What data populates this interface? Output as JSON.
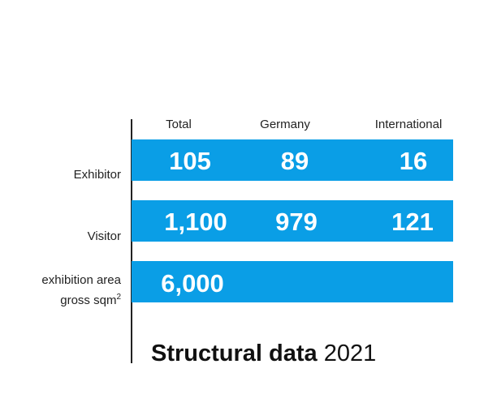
{
  "chart_data": {
    "type": "table",
    "title": "Structural data",
    "subtitle": "2021",
    "columns": [
      "Total",
      "Germany",
      "International"
    ],
    "rows": [
      {
        "label": "Exhibitor",
        "values": [
          "105",
          "89",
          "16"
        ]
      },
      {
        "label": "Visitor",
        "values": [
          "1,100",
          "979",
          "121"
        ]
      },
      {
        "label_line1": "exhibition area",
        "label_line2": "gross sqm",
        "label_sup": "2",
        "values": [
          "6,000",
          "",
          ""
        ]
      }
    ],
    "bar_color": "#0a9ee6",
    "value_color": "#ffffff"
  }
}
